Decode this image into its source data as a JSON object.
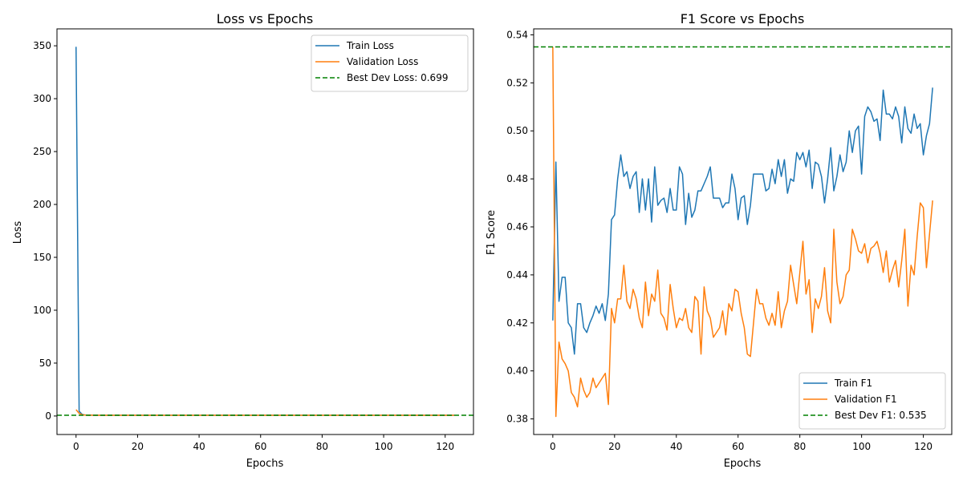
{
  "chart_data": [
    {
      "type": "line",
      "title": "Loss vs Epochs",
      "xlabel": "Epochs",
      "ylabel": "Loss",
      "xlim": [
        -6.2,
        129.2
      ],
      "ylim": [
        -17.5,
        366
      ],
      "xticks": [
        0,
        20,
        40,
        60,
        80,
        100,
        120
      ],
      "yticks": [
        0,
        50,
        100,
        150,
        200,
        250,
        300,
        350
      ],
      "grid": false,
      "legend_position": "top-right",
      "series": [
        {
          "name": "Train Loss",
          "color": "#1f77b4",
          "x": [
            0,
            1,
            2,
            3,
            4,
            5,
            6,
            10,
            20,
            30,
            40,
            50,
            60,
            70,
            80,
            90,
            100,
            110,
            123
          ],
          "y": [
            349,
            4.5,
            1.5,
            0.9,
            0.8,
            0.75,
            0.72,
            0.7,
            0.7,
            0.7,
            0.7,
            0.7,
            0.7,
            0.7,
            0.7,
            0.7,
            0.7,
            0.7,
            0.7
          ]
        },
        {
          "name": "Validation Loss",
          "color": "#ff7f0e",
          "x": [
            0,
            1,
            2,
            3,
            4,
            5,
            6,
            10,
            20,
            30,
            40,
            50,
            60,
            70,
            80,
            90,
            100,
            110,
            123
          ],
          "y": [
            6,
            2.5,
            1.2,
            0.9,
            0.8,
            0.75,
            0.72,
            0.71,
            0.71,
            0.71,
            0.71,
            0.71,
            0.71,
            0.71,
            0.71,
            0.71,
            0.71,
            0.71,
            0.71
          ]
        }
      ],
      "hlines": [
        {
          "name": "Best Dev Loss: 0.699",
          "y": 0.699,
          "color": "#008000",
          "style": "dashed"
        }
      ]
    },
    {
      "type": "line",
      "title": "F1 Score vs Epochs",
      "xlabel": "Epochs",
      "ylabel": "F1 Score",
      "xlim": [
        -6.2,
        129.2
      ],
      "ylim": [
        0.3735,
        0.5425
      ],
      "xticks": [
        0,
        20,
        40,
        60,
        80,
        100,
        120
      ],
      "yticks": [
        0.38,
        0.4,
        0.42,
        0.44,
        0.46,
        0.48,
        0.5,
        0.52,
        0.54
      ],
      "grid": false,
      "legend_position": "bottom-right",
      "series": [
        {
          "name": "Train F1",
          "color": "#1f77b4",
          "x": [
            0,
            1,
            2,
            3,
            4,
            5,
            6,
            7,
            8,
            9,
            10,
            11,
            12,
            13,
            14,
            15,
            16,
            17,
            18,
            19,
            20,
            21,
            22,
            23,
            24,
            25,
            26,
            27,
            28,
            29,
            30,
            31,
            32,
            33,
            34,
            35,
            36,
            37,
            38,
            39,
            40,
            41,
            42,
            43,
            44,
            45,
            46,
            47,
            48,
            49,
            50,
            51,
            52,
            53,
            54,
            55,
            56,
            57,
            58,
            59,
            60,
            61,
            62,
            63,
            64,
            65,
            66,
            67,
            68,
            69,
            70,
            71,
            72,
            73,
            74,
            75,
            76,
            77,
            78,
            79,
            80,
            81,
            82,
            83,
            84,
            85,
            86,
            87,
            88,
            89,
            90,
            91,
            92,
            93,
            94,
            95,
            96,
            97,
            98,
            99,
            100,
            101,
            102,
            103,
            104,
            105,
            106,
            107,
            108,
            109,
            110,
            111,
            112,
            113,
            114,
            115,
            116,
            117,
            118,
            119,
            120,
            121,
            122,
            123
          ],
          "y": [
            0.421,
            0.487,
            0.429,
            0.439,
            0.439,
            0.42,
            0.418,
            0.407,
            0.428,
            0.428,
            0.418,
            0.416,
            0.42,
            0.423,
            0.427,
            0.424,
            0.428,
            0.421,
            0.432,
            0.463,
            0.465,
            0.48,
            0.49,
            0.481,
            0.483,
            0.476,
            0.481,
            0.483,
            0.466,
            0.48,
            0.467,
            0.48,
            0.462,
            0.485,
            0.469,
            0.471,
            0.472,
            0.466,
            0.476,
            0.467,
            0.467,
            0.485,
            0.482,
            0.461,
            0.474,
            0.464,
            0.467,
            0.475,
            0.475,
            0.478,
            0.481,
            0.485,
            0.472,
            0.472,
            0.472,
            0.468,
            0.47,
            0.47,
            0.482,
            0.476,
            0.463,
            0.472,
            0.473,
            0.461,
            0.469,
            0.482,
            0.482,
            0.482,
            0.482,
            0.475,
            0.476,
            0.484,
            0.478,
            0.488,
            0.481,
            0.488,
            0.474,
            0.48,
            0.479,
            0.491,
            0.488,
            0.491,
            0.485,
            0.492,
            0.476,
            0.487,
            0.486,
            0.481,
            0.47,
            0.48,
            0.493,
            0.475,
            0.481,
            0.49,
            0.483,
            0.487,
            0.5,
            0.491,
            0.5,
            0.502,
            0.482,
            0.506,
            0.51,
            0.508,
            0.504,
            0.505,
            0.496,
            0.517,
            0.507,
            0.507,
            0.505,
            0.51,
            0.506,
            0.495,
            0.51,
            0.501,
            0.499,
            0.507,
            0.501,
            0.503,
            0.49,
            0.498,
            0.503,
            0.518
          ]
        },
        {
          "name": "Validation F1",
          "color": "#ff7f0e",
          "x": [
            0,
            1,
            2,
            3,
            4,
            5,
            6,
            7,
            8,
            9,
            10,
            11,
            12,
            13,
            14,
            15,
            16,
            17,
            18,
            19,
            20,
            21,
            22,
            23,
            24,
            25,
            26,
            27,
            28,
            29,
            30,
            31,
            32,
            33,
            34,
            35,
            36,
            37,
            38,
            39,
            40,
            41,
            42,
            43,
            44,
            45,
            46,
            47,
            48,
            49,
            50,
            51,
            52,
            53,
            54,
            55,
            56,
            57,
            58,
            59,
            60,
            61,
            62,
            63,
            64,
            65,
            66,
            67,
            68,
            69,
            70,
            71,
            72,
            73,
            74,
            75,
            76,
            77,
            78,
            79,
            80,
            81,
            82,
            83,
            84,
            85,
            86,
            87,
            88,
            89,
            90,
            91,
            92,
            93,
            94,
            95,
            96,
            97,
            98,
            99,
            100,
            101,
            102,
            103,
            104,
            105,
            106,
            107,
            108,
            109,
            110,
            111,
            112,
            113,
            114,
            115,
            116,
            117,
            118,
            119,
            120,
            121,
            122,
            123
          ],
          "y": [
            0.535,
            0.381,
            0.412,
            0.405,
            0.403,
            0.4,
            0.391,
            0.389,
            0.385,
            0.397,
            0.392,
            0.389,
            0.391,
            0.397,
            0.393,
            0.395,
            0.397,
            0.399,
            0.386,
            0.426,
            0.42,
            0.43,
            0.43,
            0.444,
            0.429,
            0.426,
            0.434,
            0.43,
            0.422,
            0.418,
            0.437,
            0.423,
            0.432,
            0.429,
            0.442,
            0.424,
            0.422,
            0.417,
            0.436,
            0.426,
            0.418,
            0.422,
            0.421,
            0.426,
            0.418,
            0.416,
            0.431,
            0.429,
            0.407,
            0.435,
            0.425,
            0.422,
            0.414,
            0.416,
            0.418,
            0.425,
            0.415,
            0.428,
            0.425,
            0.434,
            0.433,
            0.424,
            0.418,
            0.407,
            0.406,
            0.42,
            0.434,
            0.428,
            0.428,
            0.422,
            0.419,
            0.424,
            0.419,
            0.433,
            0.418,
            0.425,
            0.429,
            0.444,
            0.436,
            0.428,
            0.441,
            0.454,
            0.432,
            0.438,
            0.416,
            0.43,
            0.426,
            0.431,
            0.443,
            0.425,
            0.42,
            0.459,
            0.437,
            0.428,
            0.431,
            0.44,
            0.442,
            0.459,
            0.455,
            0.45,
            0.449,
            0.453,
            0.445,
            0.451,
            0.452,
            0.454,
            0.449,
            0.441,
            0.45,
            0.437,
            0.442,
            0.446,
            0.435,
            0.446,
            0.459,
            0.427,
            0.444,
            0.44,
            0.456,
            0.47,
            0.468,
            0.443,
            0.457,
            0.471
          ]
        }
      ],
      "hlines": [
        {
          "name": "Best Dev F1: 0.535",
          "y": 0.535,
          "color": "#008000",
          "style": "dashed"
        }
      ]
    }
  ]
}
